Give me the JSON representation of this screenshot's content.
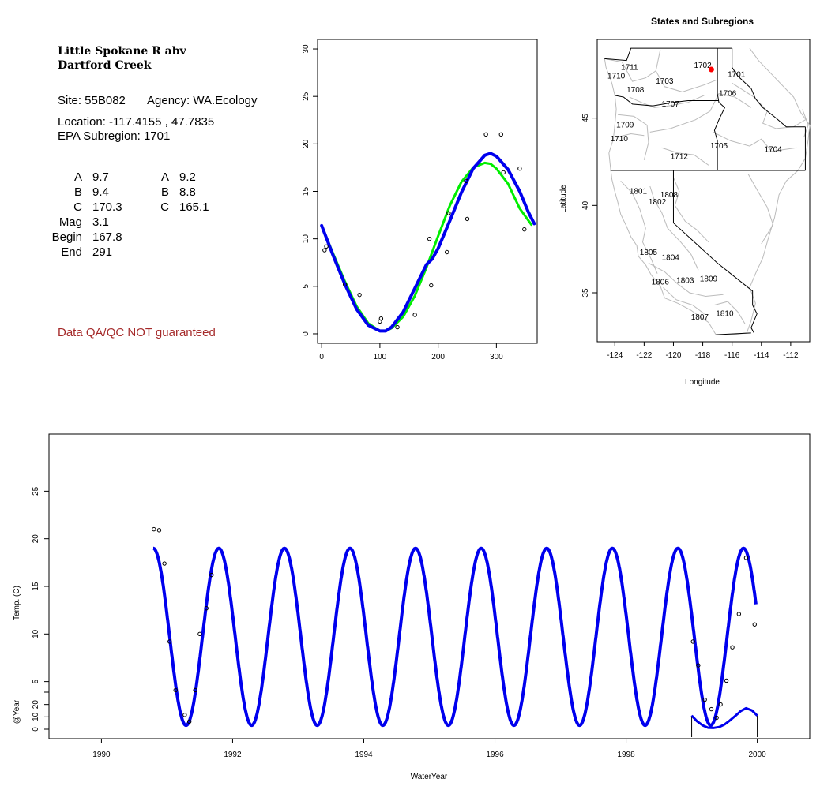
{
  "info": {
    "site_name_line1": "Little Spokane R abv",
    "site_name_line2": "Dartford Creek",
    "site_label": "Site: 55B082",
    "agency_label": "Agency: WA.Ecology",
    "location_label": "Location: -117.4155 , 47.7835",
    "subregion_label": "EPA Subregion: 1701",
    "params_left": [
      {
        "label": "A",
        "value": "9.7"
      },
      {
        "label": "B",
        "value": "9.4"
      },
      {
        "label": "C",
        "value": "170.3"
      },
      {
        "label": "Mag",
        "value": "3.1"
      },
      {
        "label": "Begin",
        "value": "167.8"
      },
      {
        "label": "End",
        "value": "291"
      }
    ],
    "params_right": [
      {
        "label": "A",
        "value": "9.2"
      },
      {
        "label": "B",
        "value": "8.8"
      },
      {
        "label": "C",
        "value": "165.1"
      }
    ],
    "qa_note": "Data QA/QC NOT guaranteed"
  },
  "colors": {
    "fit_blue": "#0000ee",
    "fit_green": "#00ee00",
    "site_marker": "#ff0000",
    "boundary_gray": "#bbbbbb",
    "qa_text": "#a52a2a"
  },
  "chart_data": [
    {
      "type": "scatter",
      "title": "",
      "xlabel": "",
      "ylabel": "",
      "xlim": [
        -7,
        370
      ],
      "ylim": [
        -1,
        31
      ],
      "x_ticks": [
        0,
        100,
        200,
        300
      ],
      "y_ticks": [
        0,
        5,
        10,
        15,
        20,
        25,
        30
      ],
      "points": [
        [
          5,
          8.8
        ],
        [
          8,
          9.2
        ],
        [
          40,
          5.2
        ],
        [
          65,
          4.1
        ],
        [
          100,
          1.3
        ],
        [
          102,
          1.6
        ],
        [
          130,
          0.7
        ],
        [
          160,
          2.0
        ],
        [
          185,
          10.0
        ],
        [
          188,
          5.1
        ],
        [
          215,
          8.6
        ],
        [
          218,
          12.7
        ],
        [
          248,
          16.1
        ],
        [
          250,
          12.1
        ],
        [
          282,
          21.0
        ],
        [
          308,
          21.0
        ],
        [
          312,
          17.0
        ],
        [
          340,
          17.4
        ],
        [
          348,
          11.0
        ]
      ],
      "series": [
        {
          "name": "",
          "color": "green",
          "x": [
            0,
            20,
            40,
            60,
            80,
            100,
            110,
            120,
            140,
            160,
            180,
            200,
            220,
            240,
            260,
            280,
            290,
            300,
            320,
            340,
            360
          ],
          "y": [
            11.4,
            8.4,
            5.5,
            2.9,
            1.1,
            0.3,
            0.3,
            0.6,
            1.8,
            4.0,
            7.0,
            10.3,
            13.5,
            16.0,
            17.5,
            18.0,
            17.9,
            17.4,
            15.8,
            13.2,
            11.5
          ]
        },
        {
          "name": "",
          "color": "blue",
          "x": [
            0,
            20,
            40,
            60,
            80,
            100,
            110,
            120,
            140,
            160,
            180,
            190,
            200,
            220,
            240,
            260,
            280,
            290,
            300,
            320,
            340,
            355,
            365
          ],
          "y": [
            11.4,
            8.2,
            5.2,
            2.6,
            0.9,
            0.3,
            0.3,
            0.7,
            2.3,
            4.8,
            7.3,
            7.9,
            9.0,
            11.9,
            14.9,
            17.4,
            18.8,
            19.0,
            18.7,
            17.3,
            15.0,
            12.8,
            11.6
          ]
        }
      ]
    },
    {
      "type": "scatter",
      "title": "States and Subregions",
      "xlabel": "Longitude",
      "ylabel": "Latitude",
      "xlim": [
        -125.2,
        -110.7
      ],
      "ylim": [
        32.2,
        49.5
      ],
      "x_ticks": [
        -124,
        -122,
        -120,
        -118,
        -116,
        -114,
        -112
      ],
      "y_ticks": [
        35,
        40,
        45
      ],
      "site": {
        "lon": -117.4155,
        "lat": 47.7835
      },
      "region_labels": [
        {
          "text": "1702",
          "lon": -118.0,
          "lat": 48.0
        },
        {
          "text": "1711",
          "lon": -123.0,
          "lat": 47.9
        },
        {
          "text": "1710",
          "lon": -123.9,
          "lat": 47.4
        },
        {
          "text": "1703",
          "lon": -120.6,
          "lat": 47.1
        },
        {
          "text": "1701",
          "lon": -115.7,
          "lat": 47.5
        },
        {
          "text": "1708",
          "lon": -122.6,
          "lat": 46.6
        },
        {
          "text": "1707",
          "lon": -120.2,
          "lat": 45.8
        },
        {
          "text": "1706",
          "lon": -116.3,
          "lat": 46.4
        },
        {
          "text": "1709",
          "lon": -123.3,
          "lat": 44.6
        },
        {
          "text": "1710",
          "lon": -123.7,
          "lat": 43.8
        },
        {
          "text": "1705",
          "lon": -116.9,
          "lat": 43.4
        },
        {
          "text": "1704",
          "lon": -113.2,
          "lat": 43.2
        },
        {
          "text": "1712",
          "lon": -119.6,
          "lat": 42.8
        },
        {
          "text": "1801",
          "lon": -122.4,
          "lat": 40.8
        },
        {
          "text": "1808",
          "lon": -120.3,
          "lat": 40.6
        },
        {
          "text": "1802",
          "lon": -121.1,
          "lat": 40.2
        },
        {
          "text": "1805",
          "lon": -121.7,
          "lat": 37.3
        },
        {
          "text": "1804",
          "lon": -120.2,
          "lat": 37.0
        },
        {
          "text": "1806",
          "lon": -120.9,
          "lat": 35.6
        },
        {
          "text": "1803",
          "lon": -119.2,
          "lat": 35.7
        },
        {
          "text": "1809",
          "lon": -117.6,
          "lat": 35.8
        },
        {
          "text": "1807",
          "lon": -118.2,
          "lat": 33.6
        },
        {
          "text": "1810",
          "lon": -116.5,
          "lat": 33.8
        }
      ]
    },
    {
      "type": "line",
      "title": "",
      "xlabel": "WaterYear",
      "ylabel": "Temp. (C)",
      "ylabel_lower": "@Year",
      "xlim": [
        1989.2,
        2000.8
      ],
      "ylim": [
        -1,
        31
      ],
      "x_ticks": [
        1990,
        1992,
        1994,
        1996,
        1998,
        2000
      ],
      "y_ticks": [
        5,
        10,
        15,
        20,
        25
      ],
      "y_ticks_lower": [
        0,
        10,
        20
      ],
      "sine": {
        "start": 1990.79,
        "end": 1999.98,
        "mean": 9.7,
        "amplitude": 9.3,
        "peak_frac": 0.79
      },
      "points": [
        [
          1990.8,
          21.0
        ],
        [
          1990.88,
          20.9
        ],
        [
          1990.96,
          17.4
        ],
        [
          1991.04,
          9.2
        ],
        [
          1991.13,
          4.1
        ],
        [
          1991.27,
          1.5
        ],
        [
          1991.34,
          0.8
        ],
        [
          1991.43,
          4.1
        ],
        [
          1991.5,
          10.0
        ],
        [
          1991.6,
          12.7
        ],
        [
          1991.68,
          16.2
        ],
        [
          1999.02,
          9.2
        ],
        [
          1999.1,
          6.7
        ],
        [
          1999.2,
          3.1
        ],
        [
          1999.3,
          2.1
        ],
        [
          1999.38,
          1.2
        ],
        [
          1999.44,
          2.6
        ],
        [
          1999.53,
          5.1
        ],
        [
          1999.62,
          8.6
        ],
        [
          1999.72,
          12.1
        ],
        [
          1999.83,
          18.0
        ],
        [
          1999.96,
          11.0
        ]
      ],
      "lower_fit": {
        "x_start": 1999.0,
        "x_end": 2000.0,
        "x": [
          1999.0,
          1999.08,
          1999.17,
          1999.25,
          1999.33,
          1999.42,
          1999.5,
          1999.58,
          1999.67,
          1999.75,
          1999.83,
          1999.92,
          2000.0
        ],
        "y": [
          11.0,
          6.5,
          3.0,
          1.2,
          1.0,
          1.8,
          3.8,
          7.0,
          11.0,
          14.8,
          17.0,
          15.2,
          11.0
        ]
      }
    }
  ]
}
